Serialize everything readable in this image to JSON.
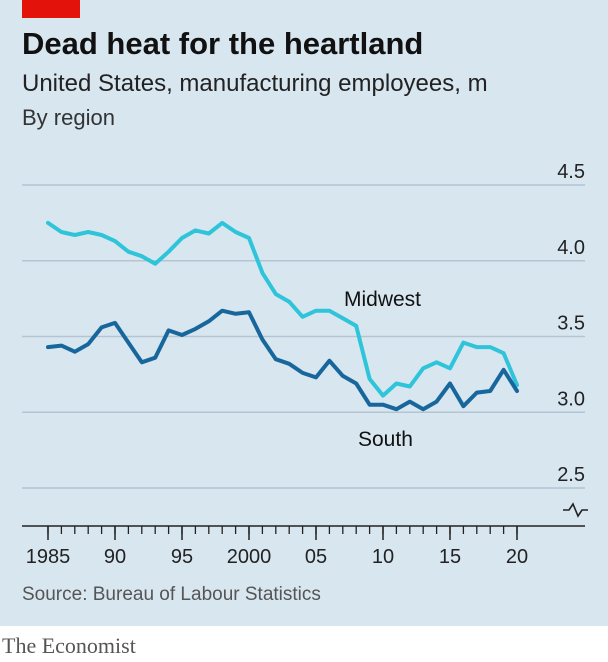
{
  "header": {
    "title": "Dead heat for the heartland",
    "subtitle": "United States, manufacturing employees, m",
    "subsubtitle": "By region"
  },
  "footer": {
    "source": "Source: Bureau of Labour Statistics",
    "brand": "The Economist"
  },
  "colors": {
    "background": "#d8e6f0",
    "accent_red": "#e3120b",
    "midwest": "#2ec4d9",
    "south": "#17679c",
    "grid": "#b4c4d2"
  },
  "chart_data": {
    "type": "line",
    "title": "Dead heat for the heartland",
    "xlabel": "",
    "ylabel": "",
    "xlim": [
      1985,
      2020
    ],
    "ylim": [
      2.5,
      4.5
    ],
    "grid": true,
    "y_axis_broken": true,
    "x_ticks": [
      {
        "value": 1985,
        "label": "1985"
      },
      {
        "value": 1990,
        "label": "90"
      },
      {
        "value": 1995,
        "label": "95"
      },
      {
        "value": 2000,
        "label": "2000"
      },
      {
        "value": 2005,
        "label": "05"
      },
      {
        "value": 2010,
        "label": "10"
      },
      {
        "value": 2015,
        "label": "15"
      },
      {
        "value": 2020,
        "label": "20"
      }
    ],
    "y_ticks": [
      {
        "value": 4.5,
        "label": "4.5"
      },
      {
        "value": 4.0,
        "label": "4.0"
      },
      {
        "value": 3.5,
        "label": "3.5"
      },
      {
        "value": 3.0,
        "label": "3.0"
      },
      {
        "value": 2.5,
        "label": "2.5"
      }
    ],
    "x": [
      1985,
      1986,
      1987,
      1988,
      1989,
      1990,
      1991,
      1992,
      1993,
      1994,
      1995,
      1996,
      1997,
      1998,
      1999,
      2000,
      2001,
      2002,
      2003,
      2004,
      2005,
      2006,
      2007,
      2008,
      2009,
      2010,
      2011,
      2012,
      2013,
      2014,
      2015,
      2016,
      2017,
      2018,
      2019,
      2020
    ],
    "series": [
      {
        "name": "Midwest",
        "color": "#2ec4d9",
        "values": [
          4.25,
          4.19,
          4.17,
          4.19,
          4.17,
          4.13,
          4.06,
          4.03,
          3.98,
          4.06,
          4.15,
          4.2,
          4.18,
          4.25,
          4.19,
          4.15,
          3.92,
          3.78,
          3.73,
          3.63,
          3.67,
          3.67,
          3.62,
          3.57,
          3.22,
          3.11,
          3.19,
          3.17,
          3.29,
          3.33,
          3.29,
          3.46,
          3.43,
          3.43,
          3.39,
          3.18
        ]
      },
      {
        "name": "South",
        "color": "#17679c",
        "values": [
          3.43,
          3.44,
          3.4,
          3.45,
          3.56,
          3.59,
          3.46,
          3.33,
          3.36,
          3.54,
          3.51,
          3.55,
          3.6,
          3.67,
          3.65,
          3.66,
          3.48,
          3.35,
          3.32,
          3.26,
          3.23,
          3.34,
          3.24,
          3.19,
          3.05,
          3.05,
          3.02,
          3.07,
          3.02,
          3.07,
          3.19,
          3.04,
          3.13,
          3.14,
          3.28,
          3.14
        ]
      }
    ]
  }
}
